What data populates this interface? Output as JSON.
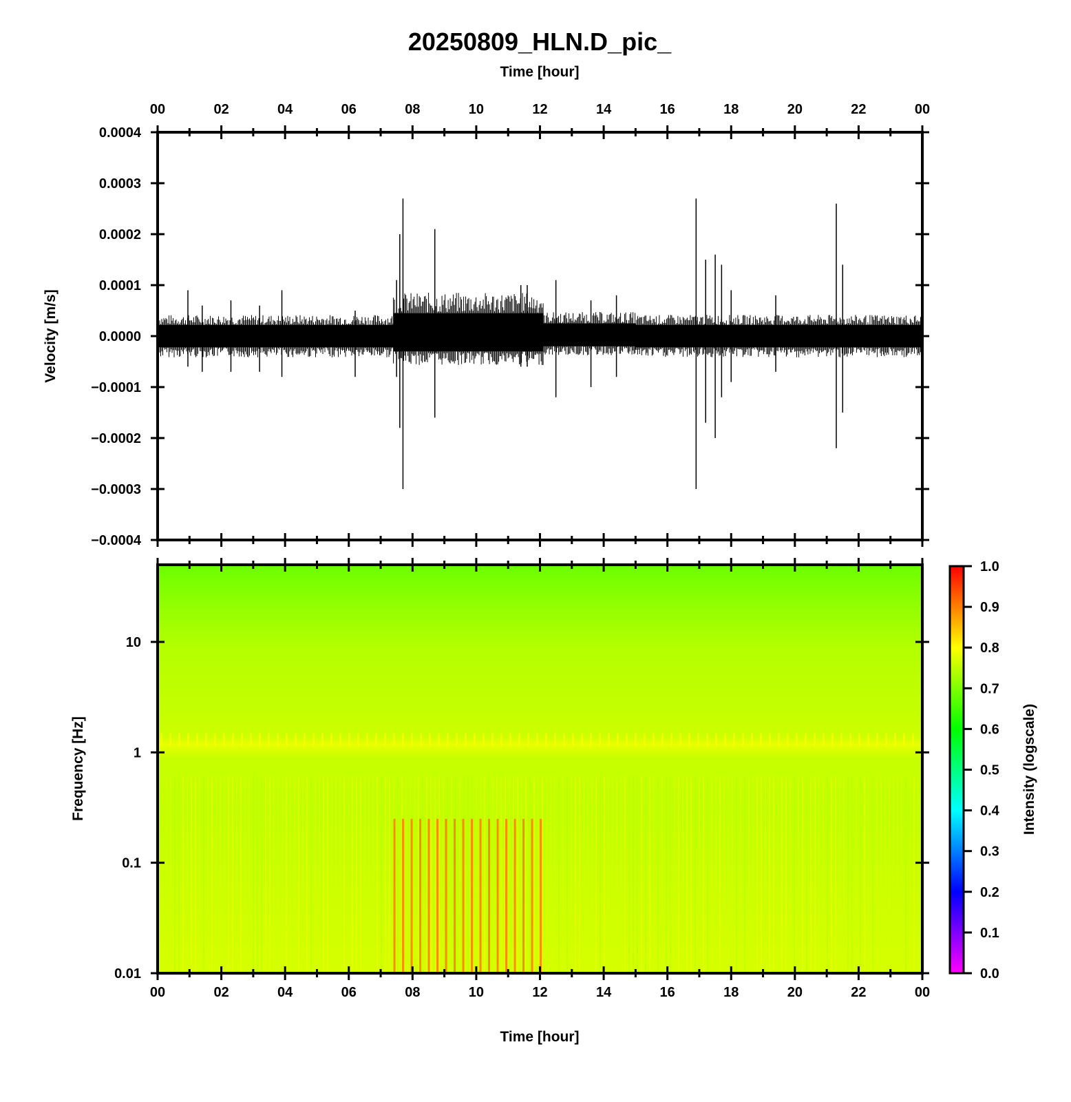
{
  "title": "20250809_HLN.D_pic_",
  "chart_data": [
    {
      "type": "line",
      "name": "seismogram",
      "xlabel": "Time [hour]",
      "ylabel": "Velocity [m/s]",
      "xlim": [
        0,
        24
      ],
      "ylim": [
        -0.0004,
        0.0004
      ],
      "x_ticks": [
        "00",
        "02",
        "04",
        "06",
        "08",
        "10",
        "12",
        "14",
        "16",
        "18",
        "20",
        "22",
        "00"
      ],
      "y_ticks": [
        "0.0004",
        "0.0003",
        "0.0002",
        "0.0001",
        "0.0000",
        "−0.0001",
        "−0.0002",
        "−0.0003",
        "−0.0004"
      ],
      "background_band": [
        {
          "x0": 0,
          "x1": 7.4,
          "upper": 2.2e-05,
          "lower": -2.2e-05
        },
        {
          "x0": 7.4,
          "x1": 12.1,
          "upper": 4.5e-05,
          "lower": -3e-05
        },
        {
          "x0": 12.1,
          "x1": 15.0,
          "upper": 2.5e-05,
          "lower": -2e-05
        },
        {
          "x0": 15.0,
          "x1": 24,
          "upper": 2.2e-05,
          "lower": -2.2e-05
        }
      ],
      "spikes": [
        {
          "x": 0.95,
          "max": 9e-05,
          "min": -6e-05
        },
        {
          "x": 1.4,
          "max": 6e-05,
          "min": -7e-05
        },
        {
          "x": 2.3,
          "max": 7e-05,
          "min": -7e-05
        },
        {
          "x": 3.2,
          "max": 6e-05,
          "min": -7e-05
        },
        {
          "x": 3.9,
          "max": 9e-05,
          "min": -8e-05
        },
        {
          "x": 6.2,
          "max": 5e-05,
          "min": -8e-05
        },
        {
          "x": 7.5,
          "max": 0.00011,
          "min": -8e-05
        },
        {
          "x": 7.6,
          "max": 0.0002,
          "min": -0.00018
        },
        {
          "x": 7.7,
          "max": 0.00027,
          "min": -0.0003
        },
        {
          "x": 8.7,
          "max": 0.00021,
          "min": -0.00016
        },
        {
          "x": 11.4,
          "max": 0.0001,
          "min": -6e-05
        },
        {
          "x": 11.6,
          "max": 0.0001,
          "min": -6e-05
        },
        {
          "x": 12.5,
          "max": 0.00011,
          "min": -0.00012
        },
        {
          "x": 13.6,
          "max": 7e-05,
          "min": -0.0001
        },
        {
          "x": 14.4,
          "max": 8e-05,
          "min": -8e-05
        },
        {
          "x": 16.9,
          "max": 0.00027,
          "min": -0.0003
        },
        {
          "x": 17.2,
          "max": 0.00015,
          "min": -0.00017
        },
        {
          "x": 17.5,
          "max": 0.00016,
          "min": -0.0002
        },
        {
          "x": 17.7,
          "max": 0.00014,
          "min": -0.00012
        },
        {
          "x": 18.0,
          "max": 9e-05,
          "min": -9e-05
        },
        {
          "x": 19.4,
          "max": 8e-05,
          "min": -7e-05
        },
        {
          "x": 21.3,
          "max": 0.00026,
          "min": -0.00022
        },
        {
          "x": 21.5,
          "max": 0.00014,
          "min": -0.00015
        }
      ]
    },
    {
      "type": "heatmap",
      "name": "spectrogram",
      "xlabel": "Time [hour]",
      "ylabel": "Frequency [Hz]",
      "xlim": [
        0,
        24
      ],
      "ylim": [
        0.01,
        50
      ],
      "yscale": "log",
      "x_ticks": [
        "00",
        "02",
        "04",
        "06",
        "08",
        "10",
        "12",
        "14",
        "16",
        "18",
        "20",
        "22",
        "00"
      ],
      "y_ticks": [
        "10",
        "1",
        "0.1",
        "0.01"
      ],
      "colorbar": {
        "label": "Intensity (logscale)",
        "range": [
          0,
          1
        ],
        "ticks": [
          "1.0",
          "0.9",
          "0.8",
          "0.7",
          "0.6",
          "0.5",
          "0.4",
          "0.3",
          "0.2",
          "0.1",
          "0.0"
        ],
        "colors": [
          "#ff00ff",
          "#0000ff",
          "#00ffff",
          "#00ff00",
          "#ffff00",
          "#ff0000"
        ]
      },
      "intensity_profile": [
        {
          "freq": 50,
          "value": 0.68
        },
        {
          "freq": 10,
          "value": 0.74
        },
        {
          "freq": 1.2,
          "value": 0.82
        },
        {
          "freq": 0.5,
          "value": 0.78
        },
        {
          "freq": 0.01,
          "value": 0.8
        }
      ],
      "highlights": [
        {
          "x0": 7.4,
          "x1": 12.0,
          "freq_low": 0.01,
          "freq_high": 0.25,
          "value": 0.92
        }
      ]
    }
  ]
}
